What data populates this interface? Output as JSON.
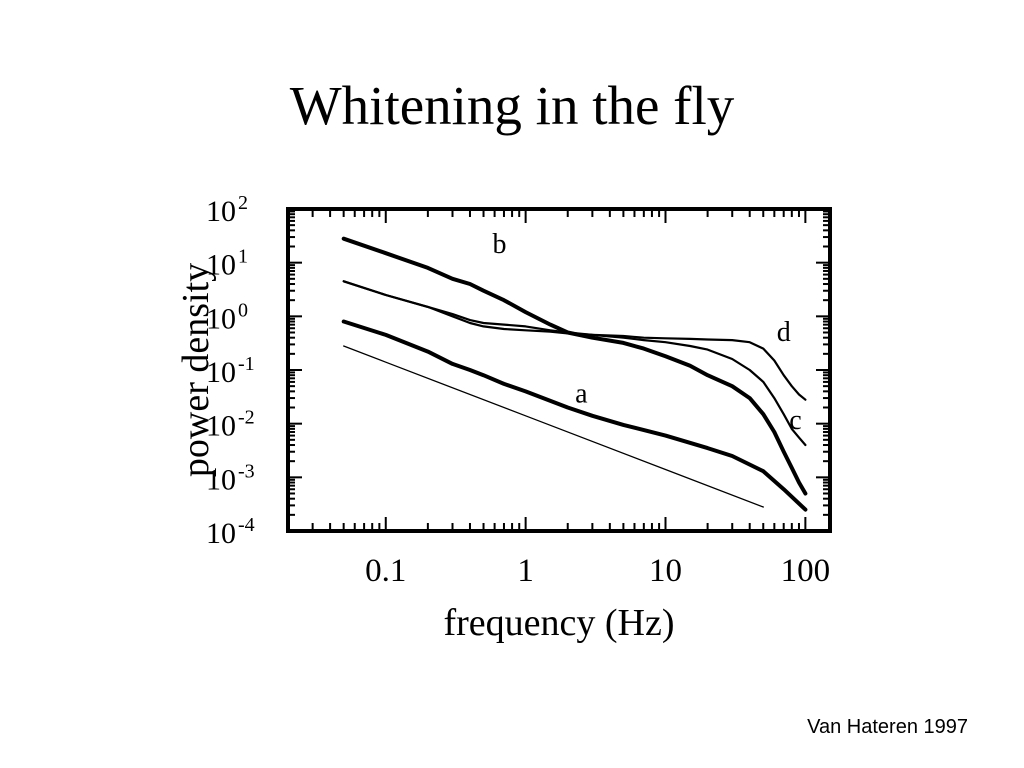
{
  "slide": {
    "title": "Whitening in the fly",
    "citation": "Van Hateren 1997"
  },
  "chart_data": {
    "type": "line",
    "title": "",
    "xlabel": "frequency (Hz)",
    "ylabel": "power density",
    "x_scale": "log",
    "y_scale": "log",
    "xlim": [
      0.02,
      150
    ],
    "ylim": [
      0.0001,
      100
    ],
    "x_ticks": [
      {
        "value": 0.1,
        "label": "0.1"
      },
      {
        "value": 1,
        "label": "1"
      },
      {
        "value": 10,
        "label": "10"
      },
      {
        "value": 100,
        "label": "100"
      }
    ],
    "y_ticks": [
      {
        "value": 0.0001,
        "base": "10",
        "exp": "-4"
      },
      {
        "value": 0.001,
        "base": "10",
        "exp": "-3"
      },
      {
        "value": 0.01,
        "base": "10",
        "exp": "-2"
      },
      {
        "value": 0.1,
        "base": "10",
        "exp": "-1"
      },
      {
        "value": 1,
        "base": "10",
        "exp": "0"
      },
      {
        "value": 10,
        "base": "10",
        "exp": "1"
      },
      {
        "value": 100,
        "base": "10",
        "exp": "2"
      }
    ],
    "grid": false,
    "series": [
      {
        "name": "b",
        "style": "thick",
        "label_at": {
          "x": 0.65,
          "y": 15
        },
        "points": [
          [
            0.05,
            28
          ],
          [
            0.1,
            15
          ],
          [
            0.2,
            8
          ],
          [
            0.3,
            5
          ],
          [
            0.4,
            4
          ],
          [
            0.5,
            3
          ],
          [
            0.7,
            2
          ],
          [
            1,
            1.2
          ],
          [
            1.5,
            0.7
          ],
          [
            2,
            0.5
          ],
          [
            3,
            0.4
          ],
          [
            5,
            0.32
          ],
          [
            7,
            0.25
          ],
          [
            10,
            0.18
          ],
          [
            15,
            0.12
          ],
          [
            20,
            0.08
          ],
          [
            30,
            0.05
          ],
          [
            40,
            0.03
          ],
          [
            50,
            0.015
          ],
          [
            60,
            0.007
          ],
          [
            70,
            0.003
          ],
          [
            80,
            0.0015
          ],
          [
            90,
            0.0008
          ],
          [
            100,
            0.0005
          ]
        ]
      },
      {
        "name": "c",
        "style": "medium",
        "label_at": {
          "x": 85,
          "y": 0.008
        },
        "points": [
          [
            0.05,
            4.5
          ],
          [
            0.1,
            2.5
          ],
          [
            0.2,
            1.5
          ],
          [
            0.3,
            1.1
          ],
          [
            0.4,
            0.85
          ],
          [
            0.5,
            0.75
          ],
          [
            0.7,
            0.7
          ],
          [
            1,
            0.65
          ],
          [
            1.5,
            0.55
          ],
          [
            2,
            0.5
          ],
          [
            3,
            0.45
          ],
          [
            5,
            0.4
          ],
          [
            7,
            0.36
          ],
          [
            10,
            0.33
          ],
          [
            15,
            0.28
          ],
          [
            20,
            0.24
          ],
          [
            30,
            0.16
          ],
          [
            40,
            0.1
          ],
          [
            50,
            0.06
          ],
          [
            60,
            0.03
          ],
          [
            70,
            0.015
          ],
          [
            80,
            0.008
          ],
          [
            90,
            0.0055
          ],
          [
            100,
            0.004
          ]
        ]
      },
      {
        "name": "d",
        "style": "medium",
        "label_at": {
          "x": 70,
          "y": 0.35
        },
        "points": [
          [
            0.05,
            4.5
          ],
          [
            0.1,
            2.5
          ],
          [
            0.2,
            1.5
          ],
          [
            0.3,
            1.0
          ],
          [
            0.4,
            0.75
          ],
          [
            0.5,
            0.65
          ],
          [
            0.7,
            0.58
          ],
          [
            1,
            0.55
          ],
          [
            1.5,
            0.52
          ],
          [
            2,
            0.48
          ],
          [
            3,
            0.45
          ],
          [
            5,
            0.43
          ],
          [
            7,
            0.4
          ],
          [
            10,
            0.39
          ],
          [
            15,
            0.38
          ],
          [
            20,
            0.37
          ],
          [
            30,
            0.36
          ],
          [
            40,
            0.33
          ],
          [
            50,
            0.25
          ],
          [
            60,
            0.15
          ],
          [
            70,
            0.08
          ],
          [
            80,
            0.05
          ],
          [
            90,
            0.035
          ],
          [
            100,
            0.028
          ]
        ]
      },
      {
        "name": "a",
        "style": "thick",
        "label_at": {
          "x": 2.5,
          "y": 0.025
        },
        "points": [
          [
            0.05,
            0.8
          ],
          [
            0.1,
            0.45
          ],
          [
            0.2,
            0.22
          ],
          [
            0.3,
            0.13
          ],
          [
            0.4,
            0.1
          ],
          [
            0.5,
            0.08
          ],
          [
            0.7,
            0.055
          ],
          [
            1,
            0.04
          ],
          [
            2,
            0.02
          ],
          [
            3,
            0.014
          ],
          [
            5,
            0.0095
          ],
          [
            10,
            0.006
          ],
          [
            20,
            0.0035
          ],
          [
            30,
            0.0025
          ],
          [
            50,
            0.0013
          ],
          [
            70,
            0.0006
          ],
          [
            100,
            0.00025
          ]
        ]
      },
      {
        "name": "",
        "style": "thin",
        "label_at": null,
        "points": [
          [
            0.05,
            0.28
          ],
          [
            0.1,
            0.14
          ],
          [
            1,
            0.014
          ],
          [
            10,
            0.0014
          ],
          [
            50,
            0.00028
          ]
        ]
      }
    ]
  }
}
